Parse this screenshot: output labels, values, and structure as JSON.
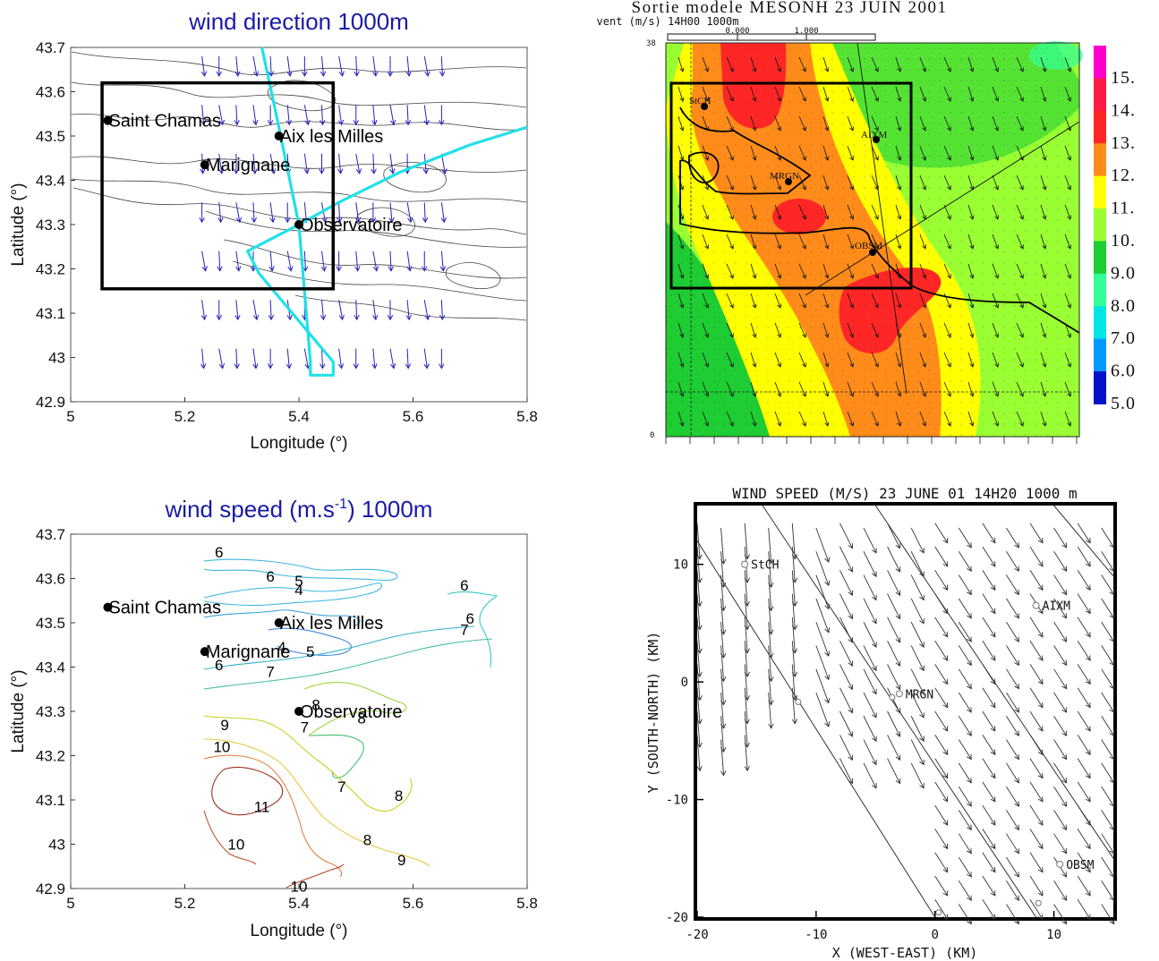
{
  "chart_data": [
    {
      "id": "tl",
      "type": "vector-field",
      "title": "wind direction 1000m",
      "xlabel": "Longitude (°)",
      "ylabel": "Latitude (°)",
      "xlim": [
        5,
        5.8
      ],
      "ylim": [
        42.9,
        43.7
      ],
      "xticks": [
        "5",
        "5.2",
        "5.4",
        "5.6",
        "5.8"
      ],
      "yticks": [
        "42.9",
        "43",
        "43.1",
        "43.2",
        "43.3",
        "43.4",
        "43.5",
        "43.6",
        "43.7"
      ],
      "sites": [
        {
          "name": "Saint Chamas",
          "lon": 5.065,
          "lat": 43.535
        },
        {
          "name": "Aix les Milles",
          "lon": 5.365,
          "lat": 43.5
        },
        {
          "name": "Marignane",
          "lon": 5.235,
          "lat": 43.435
        },
        {
          "name": "Observatoire",
          "lon": 5.4,
          "lat": 43.3
        }
      ],
      "box": {
        "lon": [
          5.055,
          5.46
        ],
        "lat": [
          43.155,
          43.62
        ]
      },
      "flight_track": [
        [
          5.335,
          43.7
        ],
        [
          5.36,
          43.55
        ],
        [
          5.4,
          43.3
        ],
        [
          5.31,
          43.24
        ],
        [
          5.33,
          43.19
        ],
        [
          5.46,
          42.99
        ],
        [
          5.46,
          42.96
        ],
        [
          5.42,
          42.96
        ],
        [
          5.42,
          42.99
        ],
        [
          5.4,
          43.3
        ],
        [
          5.47,
          43.35
        ],
        [
          5.58,
          43.42
        ],
        [
          5.7,
          43.48
        ],
        [
          5.8,
          43.52
        ]
      ],
      "arrow_columns": [
        5.23,
        5.26,
        5.29,
        5.32,
        5.35,
        5.38,
        5.41,
        5.44,
        5.47,
        5.5,
        5.53,
        5.56,
        5.59,
        5.62,
        5.65
      ]
    },
    {
      "id": "tr",
      "type": "heatmap",
      "title": "Sortie modele MESONH 23 JUIN 2001",
      "subtitle": "vent (m/s) 14H00 1000m",
      "scale_labels": [
        "0.000",
        "1.000"
      ],
      "corner_top": "38",
      "corner_bottom": "0",
      "colorbar": [
        {
          "label": "15.",
          "color": "#ff00cc"
        },
        {
          "label": "14.",
          "color": "#ff1a44"
        },
        {
          "label": "13.",
          "color": "#ff2626"
        },
        {
          "label": "12.",
          "color": "#ff8c1a"
        },
        {
          "label": "11.",
          "color": "#ffff00"
        },
        {
          "label": "10.",
          "color": "#99ff33"
        },
        {
          "label": "9.0",
          "color": "#1ecc33"
        },
        {
          "label": "8.0",
          "color": "#33ff99"
        },
        {
          "label": "7.0",
          "color": "#00e6e6"
        },
        {
          "label": "6.0",
          "color": "#0099ff"
        },
        {
          "label": "5.0",
          "color": "#0011cc"
        }
      ],
      "sites": [
        {
          "name": "StCH"
        },
        {
          "name": "AIXM"
        },
        {
          "name": "MRGN"
        },
        {
          "name": "OBSM"
        }
      ]
    },
    {
      "id": "bl",
      "type": "contour",
      "title": "wind speed (m.s-1) 1000m",
      "title_main": "wind speed (m.s",
      "title_sup": "-1",
      "title_end": ") 1000m",
      "xlabel": "Longitude (°)",
      "ylabel": "Latitude (°)",
      "xlim": [
        5,
        5.8
      ],
      "ylim": [
        42.9,
        43.7
      ],
      "xticks": [
        "5",
        "5.2",
        "5.4",
        "5.6",
        "5.8"
      ],
      "yticks": [
        "42.9",
        "43",
        "43.1",
        "43.2",
        "43.3",
        "43.4",
        "43.5",
        "43.6",
        "43.7"
      ],
      "sites": [
        {
          "name": "Saint Chamas",
          "lon": 5.065,
          "lat": 43.535
        },
        {
          "name": "Aix les Milles",
          "lon": 5.365,
          "lat": 43.5
        },
        {
          "name": "Marignane",
          "lon": 5.235,
          "lat": 43.435
        },
        {
          "name": "Observatoire",
          "lon": 5.4,
          "lat": 43.3
        }
      ],
      "contour_labels": [
        {
          "text": "6",
          "lon": 5.26,
          "lat": 43.66
        },
        {
          "text": "6",
          "lon": 5.35,
          "lat": 43.605
        },
        {
          "text": "5",
          "lon": 5.4,
          "lat": 43.595
        },
        {
          "text": "4",
          "lon": 5.4,
          "lat": 43.575
        },
        {
          "text": "6",
          "lon": 5.69,
          "lat": 43.585
        },
        {
          "text": "6",
          "lon": 5.7,
          "lat": 43.51
        },
        {
          "text": "7",
          "lon": 5.69,
          "lat": 43.485
        },
        {
          "text": "4",
          "lon": 5.37,
          "lat": 43.445
        },
        {
          "text": "5",
          "lon": 5.42,
          "lat": 43.435
        },
        {
          "text": "6",
          "lon": 5.26,
          "lat": 43.405
        },
        {
          "text": "7",
          "lon": 5.35,
          "lat": 43.39
        },
        {
          "text": "8",
          "lon": 5.43,
          "lat": 43.315
        },
        {
          "text": "8",
          "lon": 5.51,
          "lat": 43.285
        },
        {
          "text": "7",
          "lon": 5.41,
          "lat": 43.265
        },
        {
          "text": "9",
          "lon": 5.27,
          "lat": 43.27
        },
        {
          "text": "10",
          "lon": 5.265,
          "lat": 43.22
        },
        {
          "text": "7",
          "lon": 5.475,
          "lat": 43.13
        },
        {
          "text": "8",
          "lon": 5.575,
          "lat": 43.11
        },
        {
          "text": "11",
          "lon": 5.335,
          "lat": 43.085
        },
        {
          "text": "8",
          "lon": 5.52,
          "lat": 43.01
        },
        {
          "text": "10",
          "lon": 5.29,
          "lat": 43.0
        },
        {
          "text": "9",
          "lon": 5.58,
          "lat": 42.965
        },
        {
          "text": "10",
          "lon": 5.4,
          "lat": 42.905
        }
      ]
    },
    {
      "id": "br",
      "type": "vector-field",
      "title": "WIND SPEED (M/S)  23 JUNE 01   14H20   1000 m",
      "xlabel": "X (WEST-EAST) (KM)",
      "ylabel": "Y (SOUTH-NORTH) (KM)",
      "xlim": [
        -20,
        15
      ],
      "ylim": [
        -20,
        15
      ],
      "xticks": [
        "-20",
        "-10",
        "0",
        "10"
      ],
      "yticks": [
        "-20",
        "-10",
        "0",
        "10"
      ],
      "sites": [
        {
          "name": "StCH",
          "x": -16,
          "y": 10
        },
        {
          "name": "AIXM",
          "x": 8.5,
          "y": 6.5
        },
        {
          "name": "MRGN",
          "x": -3,
          "y": -1
        },
        {
          "name": "OBSM",
          "x": 10.5,
          "y": -15.5
        }
      ]
    }
  ]
}
